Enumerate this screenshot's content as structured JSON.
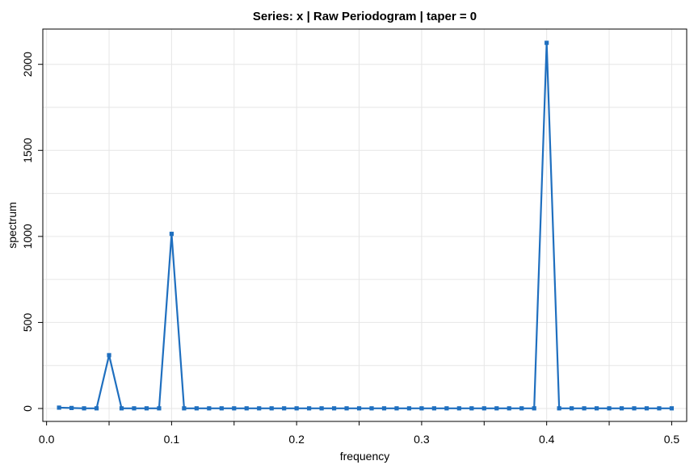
{
  "chart_data": {
    "type": "line",
    "title": "Series: x  |  Raw Periodogram  |  taper = 0",
    "xlabel": "frequency",
    "ylabel": "spectrum",
    "xlim": [
      0.0,
      0.5
    ],
    "ylim": [
      0,
      2100
    ],
    "x_ticks": [
      0.0,
      0.1,
      0.2,
      0.3,
      0.4,
      0.5
    ],
    "x_tick_labels": [
      "0.0",
      "0.1",
      "0.2",
      "0.3",
      "0.4",
      "0.5"
    ],
    "y_ticks": [
      0,
      500,
      1000,
      1500,
      2000
    ],
    "y_tick_labels": [
      "0",
      "500",
      "1000",
      "1500",
      "2000"
    ],
    "grid": true,
    "series": [
      {
        "color": "#1f6fbf",
        "x": [
          0.01,
          0.02,
          0.03,
          0.04,
          0.05,
          0.06,
          0.07,
          0.08,
          0.09,
          0.1,
          0.11,
          0.12,
          0.13,
          0.14,
          0.15,
          0.16,
          0.17,
          0.18,
          0.19,
          0.2,
          0.21,
          0.22,
          0.23,
          0.24,
          0.25,
          0.26,
          0.27,
          0.28,
          0.29,
          0.3,
          0.31,
          0.32,
          0.33,
          0.34,
          0.35,
          0.36,
          0.37,
          0.38,
          0.39,
          0.4,
          0.41,
          0.42,
          0.43,
          0.44,
          0.45,
          0.46,
          0.47,
          0.48,
          0.49,
          0.5
        ],
        "y": [
          5,
          3,
          1,
          1,
          310,
          1,
          1,
          1,
          1,
          1015,
          1,
          1,
          1,
          1,
          1,
          1,
          1,
          1,
          1,
          1,
          1,
          1,
          1,
          1,
          1,
          1,
          1,
          1,
          1,
          1,
          1,
          1,
          1,
          1,
          1,
          1,
          1,
          1,
          1,
          2125,
          1,
          1,
          1,
          1,
          1,
          1,
          1,
          1,
          1,
          1
        ]
      }
    ]
  }
}
